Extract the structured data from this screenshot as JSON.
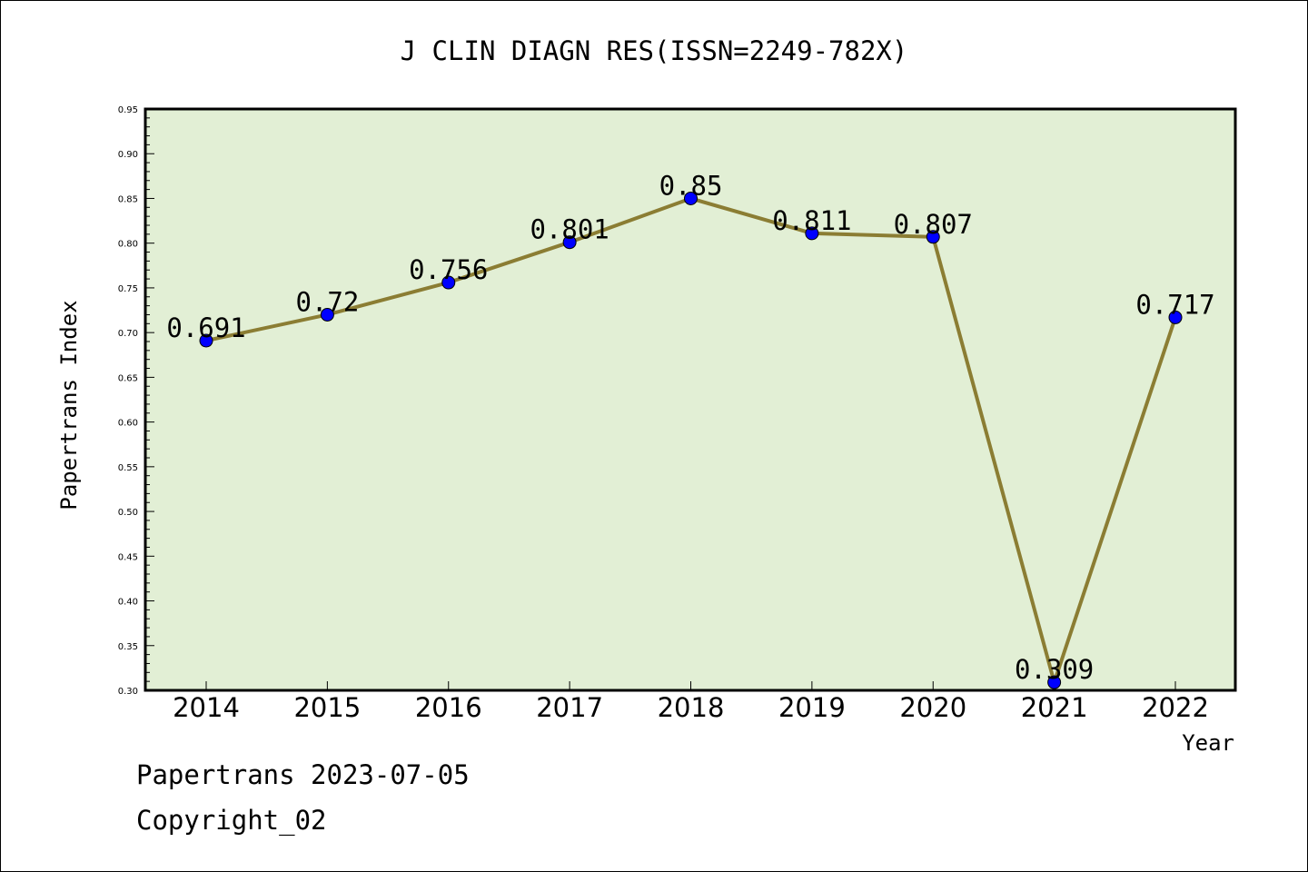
{
  "chart_data": {
    "type": "line",
    "title": "J CLIN DIAGN RES(ISSN=2249-782X)",
    "xlabel": "Year",
    "ylabel": "Papertrans Index",
    "categories": [
      "2014",
      "2015",
      "2016",
      "2017",
      "2018",
      "2019",
      "2020",
      "2021",
      "2022"
    ],
    "values": [
      0.691,
      0.72,
      0.756,
      0.801,
      0.85,
      0.811,
      0.807,
      0.309,
      0.717
    ],
    "data_labels": [
      "0.691",
      "0.72",
      "0.756",
      "0.801",
      "0.85",
      "0.811",
      "0.807",
      "0.309",
      "0.717"
    ],
    "ylim": [
      0.3,
      0.95
    ],
    "yticks": [
      "0.30",
      "0.35",
      "0.40",
      "0.45",
      "0.50",
      "0.55",
      "0.60",
      "0.65",
      "0.70",
      "0.75",
      "0.80",
      "0.85",
      "0.90",
      "0.95"
    ],
    "grid": false,
    "colors": {
      "plot_background": "#e2efd5",
      "line": "#8b7d33",
      "marker": "#0000ff"
    }
  },
  "footer": {
    "line1": "Papertrans 2023-07-05",
    "line2": "Copyright_02"
  }
}
